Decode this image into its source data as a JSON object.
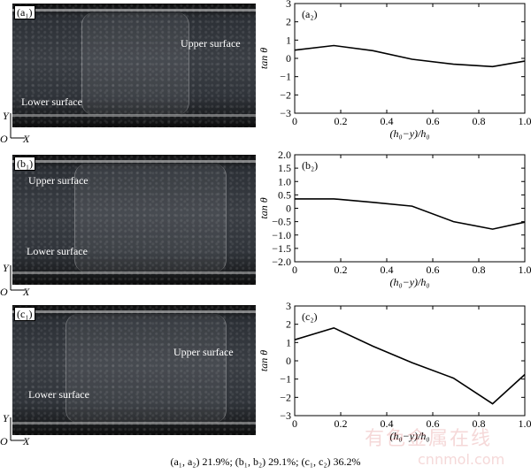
{
  "caption": "(a₁, a₂) 21.9%; (b₁, b₂) 29.1%; (c₁, c₂) 36.2%",
  "photos": [
    {
      "label": "(a₁)",
      "upper": "Upper surface",
      "lower": "Lower surface"
    },
    {
      "label": "(b₁)",
      "upper": "Upper surface",
      "lower": "Lower surface"
    },
    {
      "label": "(c₁)",
      "upper": "Upper surface",
      "lower": "Lower surface"
    }
  ],
  "axes_mini": {
    "y": "Y",
    "o": "O",
    "x": "X"
  },
  "watermark": {
    "line1": "有色金属在线",
    "line2": "cnnmol.com"
  },
  "chart_data": [
    {
      "type": "line",
      "panel_label": "(a₂)",
      "xlabel": "(h₀−y)/h₀",
      "ylabel": "tan θ",
      "xlim": [
        0,
        1.0
      ],
      "ylim": [
        -3,
        3
      ],
      "xticks": [
        "0",
        "0.2",
        "0.4",
        "0.6",
        "0.8",
        "1.0"
      ],
      "yticks": [
        "3",
        "2",
        "1",
        "0",
        "−1",
        "−2",
        "−3"
      ],
      "x": [
        0,
        0.17,
        0.34,
        0.51,
        0.69,
        0.86,
        1.0
      ],
      "y": [
        0.45,
        0.7,
        0.42,
        -0.05,
        -0.32,
        -0.45,
        -0.15
      ]
    },
    {
      "type": "line",
      "panel_label": "(b₂)",
      "xlabel": "(h₀−y)/h₀",
      "ylabel": "tan θ",
      "xlim": [
        0,
        1.0
      ],
      "ylim": [
        -2.0,
        2.0
      ],
      "xticks": [
        "0",
        "0.2",
        "0.4",
        "0.6",
        "0.8",
        "1.0"
      ],
      "yticks": [
        "2.0",
        "1.5",
        "1.0",
        "0.5",
        "0",
        "−0.5",
        "−1.0",
        "−1.5",
        "−2.0"
      ],
      "x": [
        0,
        0.17,
        0.34,
        0.51,
        0.69,
        0.86,
        1.0
      ],
      "y": [
        0.35,
        0.35,
        0.22,
        0.08,
        -0.5,
        -0.78,
        -0.52
      ]
    },
    {
      "type": "line",
      "panel_label": "(c₂)",
      "xlabel": "(h₀−y)/h₀",
      "ylabel": "tan θ",
      "xlim": [
        0,
        1.0
      ],
      "ylim": [
        -3,
        3
      ],
      "xticks": [
        "0",
        "0.2",
        "0.4",
        "0.6",
        "0.8",
        "1.0"
      ],
      "yticks": [
        "3",
        "2",
        "1",
        "0",
        "−1",
        "−2",
        "−3"
      ],
      "x": [
        0,
        0.17,
        0.34,
        0.51,
        0.69,
        0.86,
        1.0
      ],
      "y": [
        1.15,
        1.8,
        0.8,
        -0.1,
        -0.95,
        -2.35,
        -0.75
      ]
    }
  ]
}
